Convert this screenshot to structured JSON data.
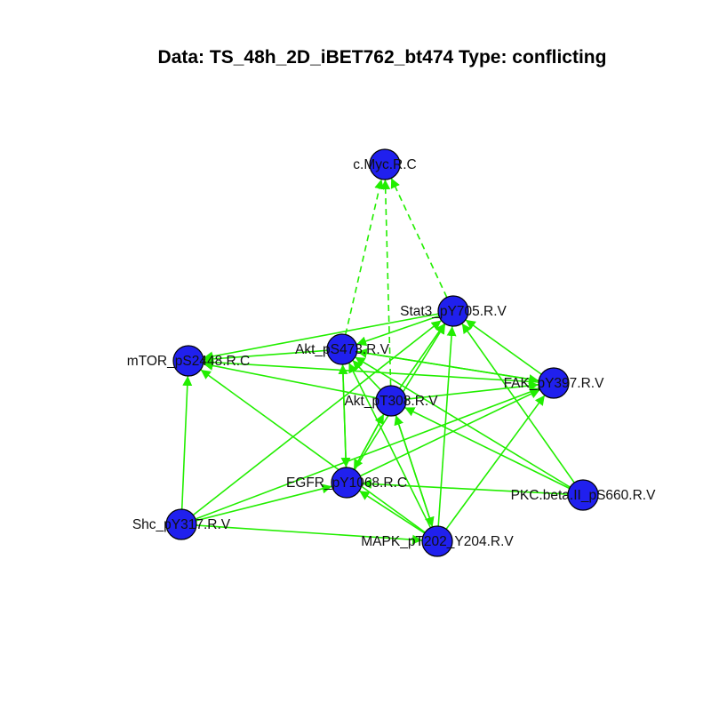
{
  "title": "Data: TS_48h_2D_iBET762_bt474 Type: conflicting",
  "style": {
    "node_fill": "#2020ee",
    "edge_color": "#22ee00"
  },
  "nodes": [
    {
      "id": "cmyc",
      "label": "c.Myc.R.C"
    },
    {
      "id": "stat3",
      "label": "Stat3_pY705.R.V"
    },
    {
      "id": "akt473",
      "label": "Akt_pS473.R.V"
    },
    {
      "id": "mtor",
      "label": "mTOR_pS2448.R.C"
    },
    {
      "id": "fak",
      "label": "FAK_pY397.R.V"
    },
    {
      "id": "akt308",
      "label": "Akt_pT308.R.V"
    },
    {
      "id": "egfr",
      "label": "EGFR_pY1068.R.C"
    },
    {
      "id": "pkc",
      "label": "PKC.beta.II_pS660.R.V"
    },
    {
      "id": "shc",
      "label": "Shc_pY317.R.V"
    },
    {
      "id": "mapk",
      "label": "MAPK_pT202_Y204.R.V"
    }
  ],
  "edges": [
    {
      "from": "akt473",
      "to": "cmyc",
      "dashed": true
    },
    {
      "from": "stat3",
      "to": "cmyc",
      "dashed": true
    },
    {
      "from": "akt308",
      "to": "cmyc",
      "dashed": true
    },
    {
      "from": "stat3",
      "to": "mtor",
      "dashed": false
    },
    {
      "from": "stat3",
      "to": "akt473",
      "dashed": false
    },
    {
      "from": "akt473",
      "to": "mtor",
      "dashed": false
    },
    {
      "from": "akt308",
      "to": "mtor",
      "dashed": false
    },
    {
      "from": "fak",
      "to": "mtor",
      "dashed": false
    },
    {
      "from": "mapk",
      "to": "mtor",
      "dashed": false
    },
    {
      "from": "shc",
      "to": "mtor",
      "dashed": false
    },
    {
      "from": "fak",
      "to": "stat3",
      "dashed": false
    },
    {
      "from": "pkc",
      "to": "stat3",
      "dashed": false
    },
    {
      "from": "mapk",
      "to": "stat3",
      "dashed": false
    },
    {
      "from": "egfr",
      "to": "stat3",
      "dashed": false
    },
    {
      "from": "akt308",
      "to": "stat3",
      "dashed": false
    },
    {
      "from": "shc",
      "to": "stat3",
      "dashed": false
    },
    {
      "from": "fak",
      "to": "akt473",
      "dashed": false
    },
    {
      "from": "pkc",
      "to": "akt473",
      "dashed": false
    },
    {
      "from": "mapk",
      "to": "akt473",
      "dashed": false
    },
    {
      "from": "egfr",
      "to": "akt473",
      "dashed": false
    },
    {
      "from": "akt308",
      "to": "akt473",
      "dashed": false
    },
    {
      "from": "akt473",
      "to": "fak",
      "dashed": false
    },
    {
      "from": "akt308",
      "to": "fak",
      "dashed": false
    },
    {
      "from": "egfr",
      "to": "fak",
      "dashed": false
    },
    {
      "from": "shc",
      "to": "fak",
      "dashed": false
    },
    {
      "from": "mapk",
      "to": "fak",
      "dashed": false
    },
    {
      "from": "pkc",
      "to": "akt308",
      "dashed": false
    },
    {
      "from": "mapk",
      "to": "akt308",
      "dashed": false
    },
    {
      "from": "egfr",
      "to": "akt308",
      "dashed": false
    },
    {
      "from": "akt473",
      "to": "egfr",
      "dashed": false
    },
    {
      "from": "akt308",
      "to": "egfr",
      "dashed": false
    },
    {
      "from": "shc",
      "to": "egfr",
      "dashed": false
    },
    {
      "from": "mapk",
      "to": "egfr",
      "dashed": false
    },
    {
      "from": "pkc",
      "to": "egfr",
      "dashed": false
    },
    {
      "from": "shc",
      "to": "mapk",
      "dashed": false
    },
    {
      "from": "akt308",
      "to": "mapk",
      "dashed": false
    }
  ]
}
